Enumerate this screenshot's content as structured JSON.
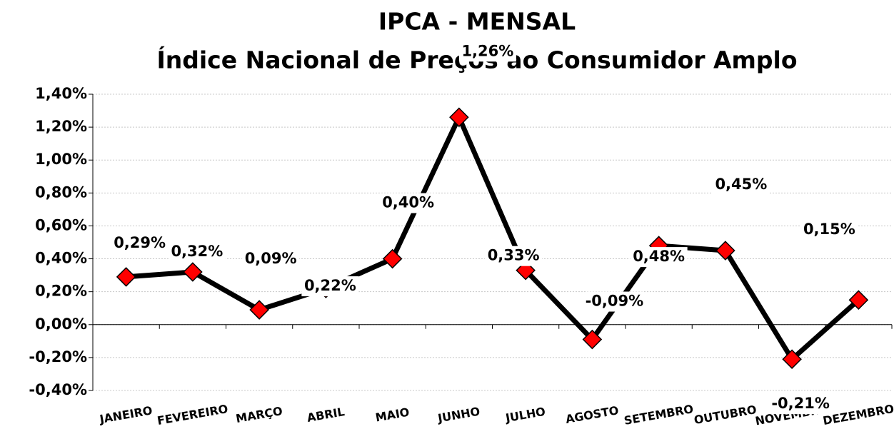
{
  "chart_data": {
    "type": "line",
    "title": "IPCA - MENSAL",
    "subtitle": "Índice Nacional de Preços ao Consumidor Amplo",
    "categories": [
      "JANEIRO",
      "FEVEREIRO",
      "MARÇO",
      "ABRIL",
      "MAIO",
      "JUNHO",
      "JULHO",
      "AGOSTO",
      "SETEMBRO",
      "OUTUBRO",
      "NOVEMBRO",
      "DEZEMBRO"
    ],
    "series": [
      {
        "color": "#000000",
        "marker_color": "#ff0000",
        "values": [
          0.29,
          0.32,
          0.09,
          0.22,
          0.4,
          1.26,
          0.33,
          -0.09,
          0.48,
          0.45,
          -0.21,
          0.15
        ],
        "value_labels": [
          "0,29%",
          "0,32%",
          "0,09%",
          "0,22%",
          "0,40%",
          "1,26%",
          "0,33%",
          "-0,09%",
          "0,48%",
          "0,45%",
          "-0,21%",
          "0,15%"
        ]
      }
    ],
    "ylim": [
      -0.4,
      1.4
    ],
    "yticks": [
      {
        "value": -0.4,
        "label": "-0,40%"
      },
      {
        "value": -0.2,
        "label": "-0,20%"
      },
      {
        "value": 0,
        "label": "0,00%"
      },
      {
        "value": 0.2,
        "label": "0,20%"
      },
      {
        "value": 0.4,
        "label": "0,40%"
      },
      {
        "value": 0.6,
        "label": "0,60%"
      },
      {
        "value": 0.8,
        "label": "0,80%"
      },
      {
        "value": 1.0,
        "label": "1,00%"
      },
      {
        "value": 1.2,
        "label": "1,20%"
      },
      {
        "value": 1.4,
        "label": "1,40%"
      }
    ],
    "grid": true
  }
}
